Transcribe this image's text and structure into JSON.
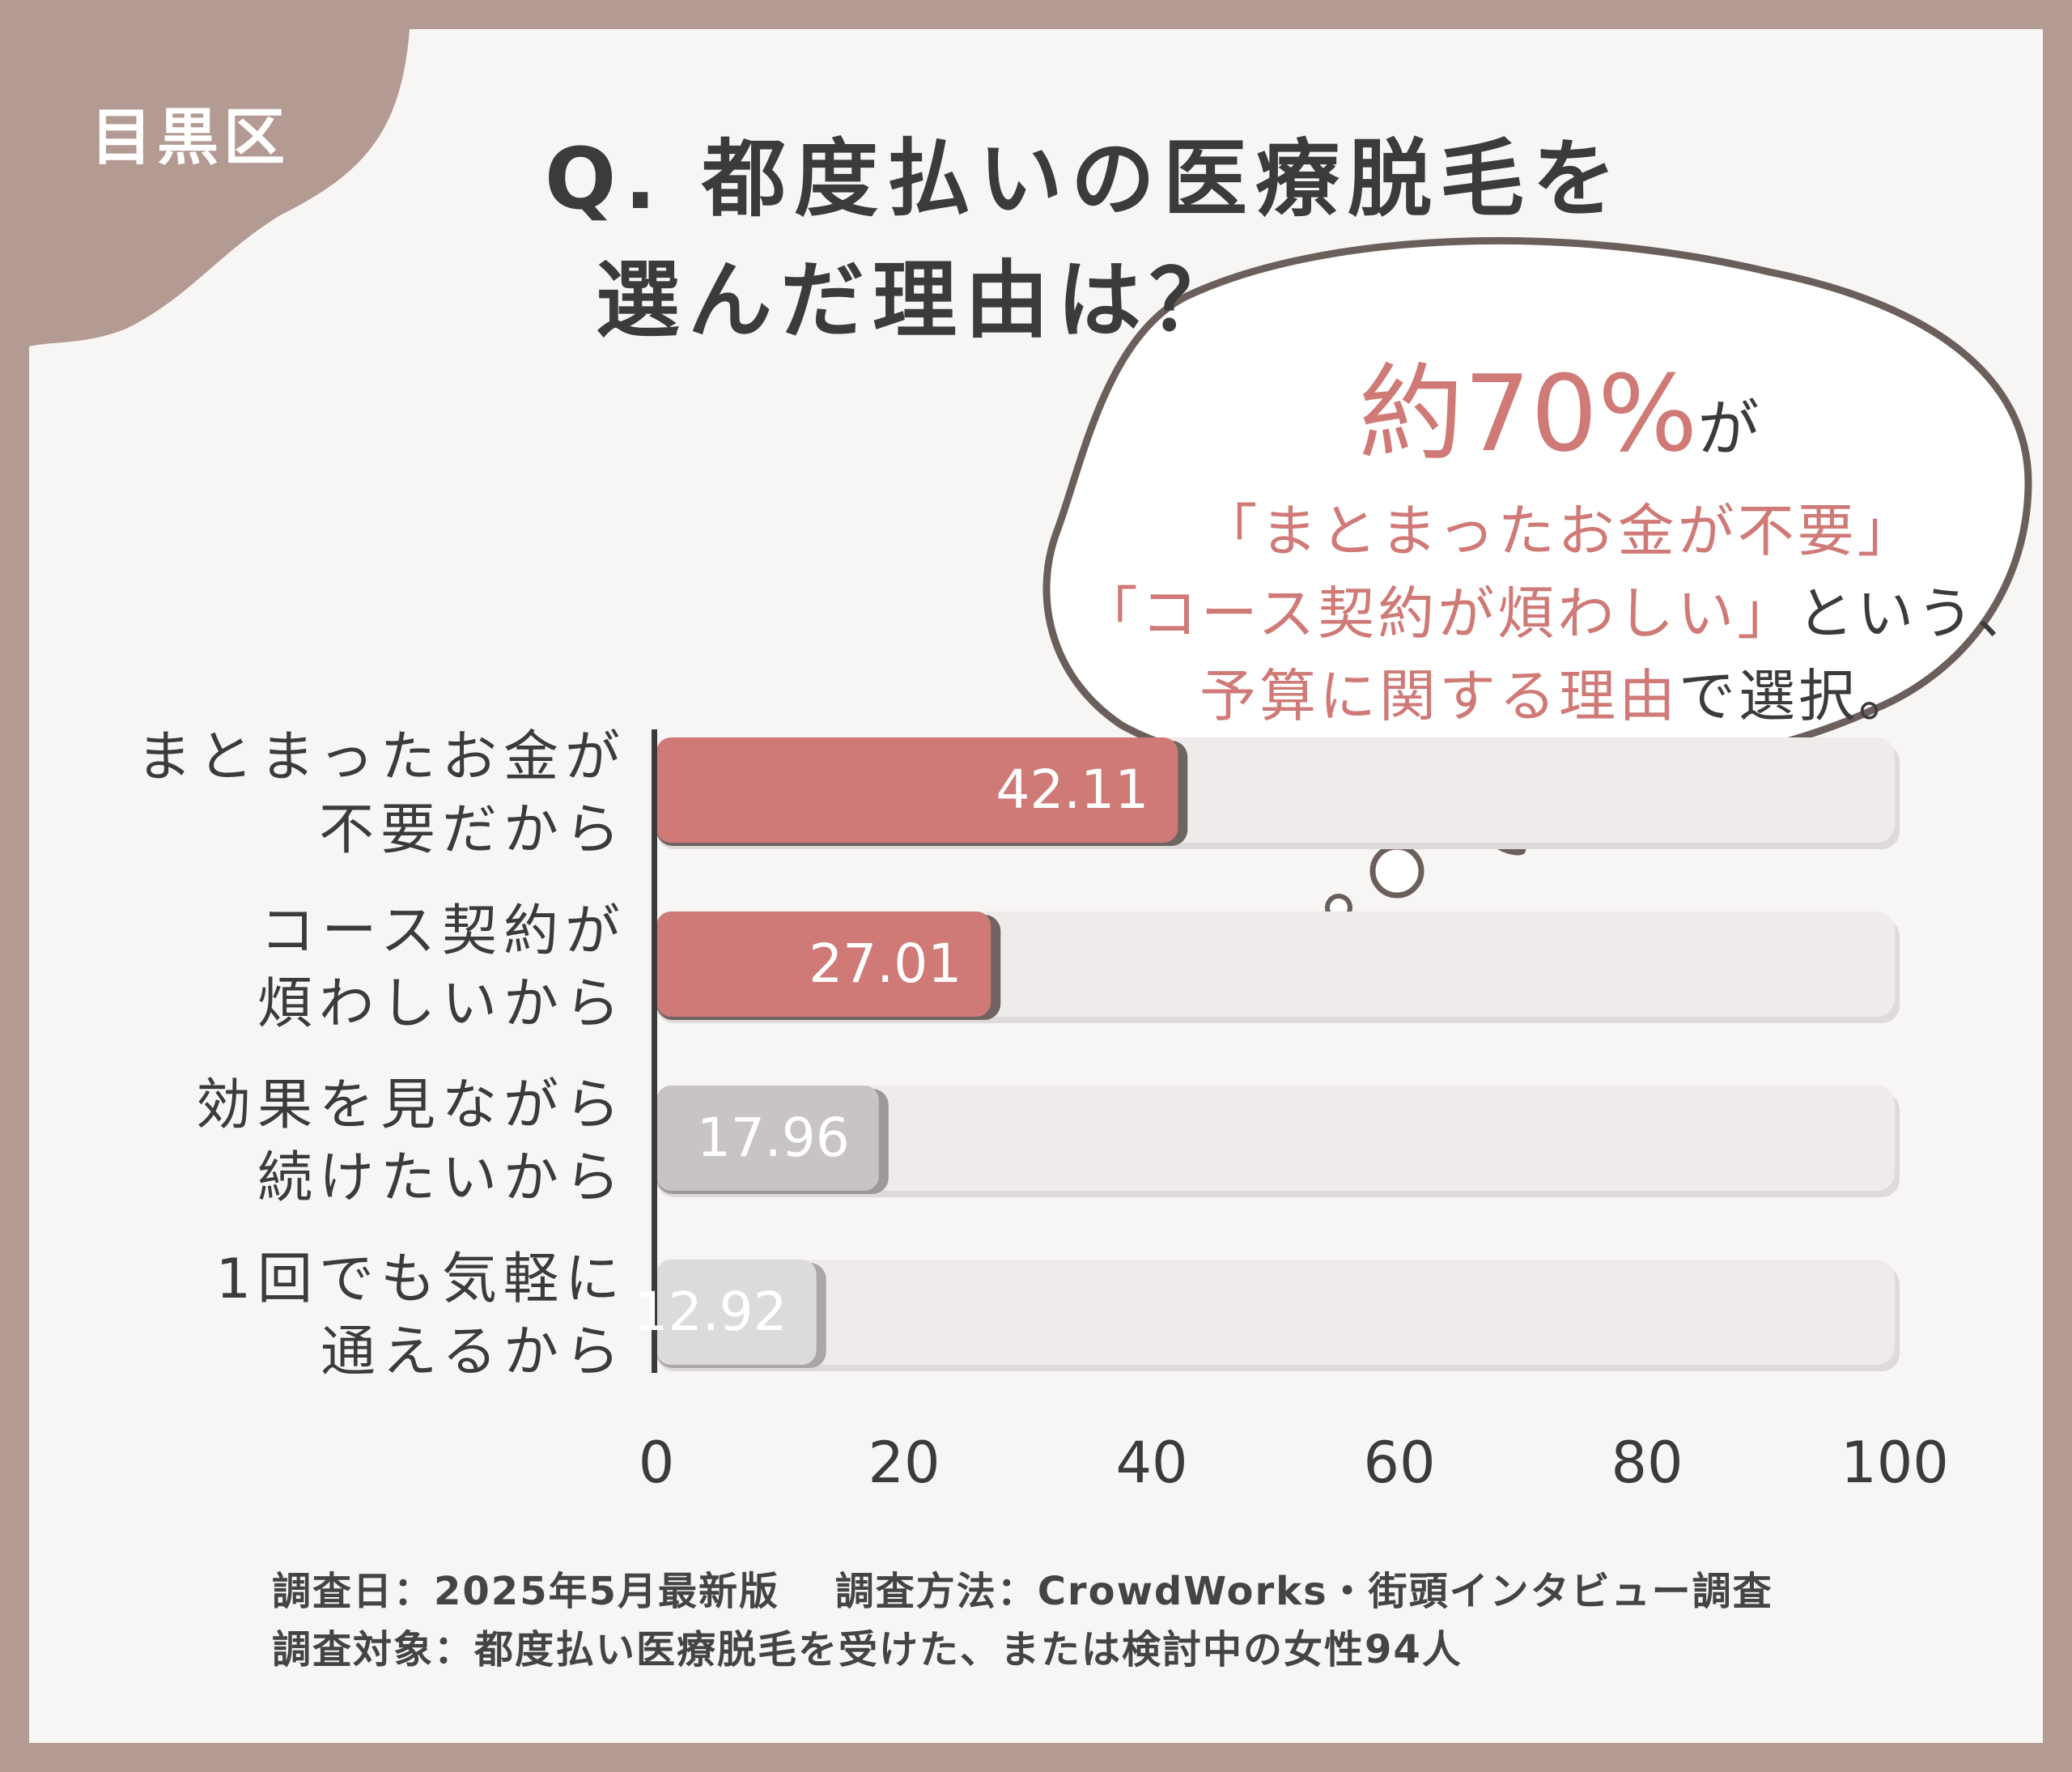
{
  "region": "目黒区",
  "title": {
    "line1": "Q. 都度払いの医療脱毛を",
    "line2": "選んだ理由は？"
  },
  "callout": {
    "headline": "約70%",
    "headline_suffix": "が",
    "line1": "「まとまったお金が不要」",
    "line2_accent": "「コース契約が煩わしい」",
    "line2_rest": "という、",
    "line3_accent": "予算に関する理由",
    "line3_rest": "で選択。"
  },
  "chart_data": {
    "type": "bar",
    "orientation": "horizontal",
    "categories": [
      [
        "まとまったお金が",
        "不要だから"
      ],
      [
        "コース契約が",
        "煩わしいから"
      ],
      [
        "効果を見ながら",
        "続けたいから"
      ],
      [
        "1回でも気軽に",
        "通えるから"
      ]
    ],
    "values": [
      42.11,
      27.01,
      17.96,
      12.92
    ],
    "value_labels": [
      "42.11",
      "27.01",
      "17.96",
      "12.92"
    ],
    "xlim": [
      0,
      100
    ],
    "xticks": [
      "0",
      "20",
      "40",
      "60",
      "80",
      "100"
    ],
    "bar_colors": [
      "#cf7a77",
      "#cf7a77",
      "#c7c4c3",
      "#dcdada"
    ],
    "bar_shadow_colors": [
      "#6e6462",
      "#6e6462",
      "#9d9998",
      "#a9a6a5"
    ],
    "track_color": "#efebea"
  },
  "footer": {
    "line1": "調査日：2025年5月最新版　 調査方法：CrowdWorks・街頭インタビュー調査",
    "line2": "調査対象：都度払い医療脱毛を受けた、または検討中の女性94人"
  }
}
